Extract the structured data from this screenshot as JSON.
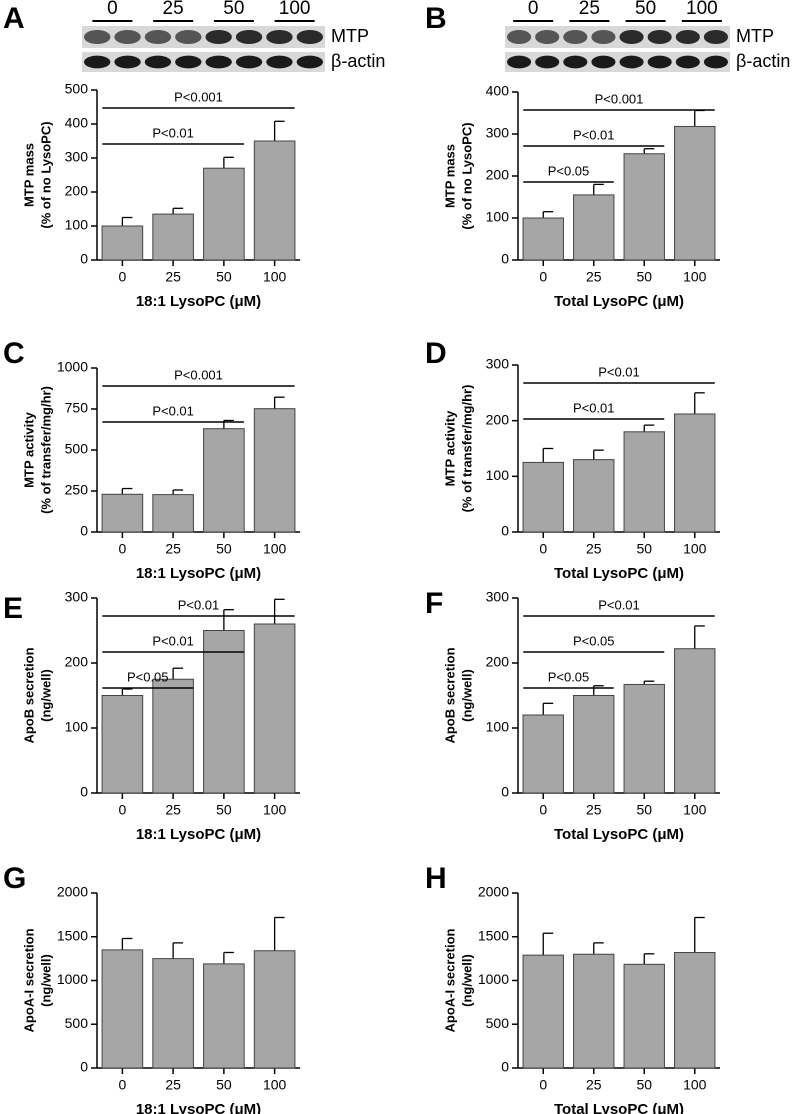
{
  "chart_data": [
    {
      "type": "bar",
      "panel": "A",
      "ylabel": [
        "MTP mass",
        "(% of no LysoPC)"
      ],
      "xlabel": "18:1 LysoPC (μM)",
      "categories": [
        "0",
        "25",
        "50",
        "100"
      ],
      "values": [
        100,
        135,
        270,
        350
      ],
      "errors": [
        25,
        17,
        32,
        58
      ],
      "color": "#a6a6a6",
      "ylim": [
        0,
        500
      ],
      "yticks": [
        0,
        100,
        200,
        300,
        400,
        500
      ],
      "brackets": [
        {
          "label": "P<0.01",
          "from": "0",
          "to": "50"
        },
        {
          "label": "P<0.001",
          "from": "0",
          "to": "100"
        }
      ],
      "blot": {
        "lanes": [
          "0",
          "25",
          "50",
          "100"
        ],
        "rows": [
          "MTP",
          "β-actin"
        ]
      }
    },
    {
      "type": "bar",
      "panel": "B",
      "ylabel": [
        "MTP mass",
        "(% of no LysoPC)"
      ],
      "xlabel": "Total LysoPC (μM)",
      "categories": [
        "0",
        "25",
        "50",
        "100"
      ],
      "values": [
        100,
        155,
        253,
        318
      ],
      "errors": [
        15,
        25,
        12,
        38
      ],
      "color": "#a6a6a6",
      "ylim": [
        0,
        400
      ],
      "yticks": [
        0,
        100,
        200,
        300,
        400
      ],
      "brackets": [
        {
          "label": "P<0.05",
          "from": "0",
          "to": "25"
        },
        {
          "label": "P<0.01",
          "from": "0",
          "to": "50"
        },
        {
          "label": "P<0.001",
          "from": "0",
          "to": "100"
        }
      ],
      "blot": {
        "lanes": [
          "0",
          "25",
          "50",
          "100"
        ],
        "rows": [
          "MTP",
          "β-actin"
        ]
      }
    },
    {
      "type": "bar",
      "panel": "C",
      "ylabel": [
        "MTP activity",
        "(% of transfer/mg/hr)"
      ],
      "xlabel": "18:1 LysoPC (μM)",
      "categories": [
        "0",
        "25",
        "50",
        "100"
      ],
      "values": [
        230,
        228,
        630,
        752
      ],
      "errors": [
        35,
        28,
        50,
        70
      ],
      "color": "#a6a6a6",
      "ylim": [
        0,
        1000
      ],
      "yticks": [
        0,
        250,
        500,
        750,
        1000
      ],
      "brackets": [
        {
          "label": "P<0.01",
          "from": "0",
          "to": "50"
        },
        {
          "label": "P<0.001",
          "from": "0",
          "to": "100"
        }
      ]
    },
    {
      "type": "bar",
      "panel": "D",
      "ylabel": [
        "MTP activity",
        "(% of transfer/mg/hr)"
      ],
      "xlabel": "Total LysoPC (μM)",
      "categories": [
        "0",
        "25",
        "50",
        "100"
      ],
      "values": [
        125,
        130,
        180,
        212
      ],
      "errors": [
        25,
        17,
        12,
        38
      ],
      "color": "#a6a6a6",
      "ylim": [
        0,
        300
      ],
      "yticks": [
        0,
        100,
        200,
        300
      ],
      "brackets": [
        {
          "label": "P<0.01",
          "from": "0",
          "to": "50"
        },
        {
          "label": "P<0.01",
          "from": "0",
          "to": "100"
        }
      ]
    },
    {
      "type": "bar",
      "panel": "E",
      "ylabel": [
        "ApoB secretion",
        "(ng/well)"
      ],
      "xlabel": "18:1 LysoPC (μM)",
      "categories": [
        "0",
        "25",
        "50",
        "100"
      ],
      "values": [
        150,
        175,
        250,
        260
      ],
      "errors": [
        10,
        17,
        32,
        38
      ],
      "color": "#a6a6a6",
      "ylim": [
        0,
        300
      ],
      "yticks": [
        0,
        100,
        200,
        300
      ],
      "brackets": [
        {
          "label": "P<0.05",
          "from": "0",
          "to": "25"
        },
        {
          "label": "P<0.01",
          "from": "0",
          "to": "50"
        },
        {
          "label": "P<0.01",
          "from": "0",
          "to": "100"
        }
      ]
    },
    {
      "type": "bar",
      "panel": "F",
      "ylabel": [
        "ApoB secretion",
        "(ng/well)"
      ],
      "xlabel": "Total LysoPC (μM)",
      "categories": [
        "0",
        "25",
        "50",
        "100"
      ],
      "values": [
        120,
        150,
        167,
        222
      ],
      "errors": [
        18,
        15,
        5,
        35
      ],
      "color": "#a6a6a6",
      "ylim": [
        0,
        300
      ],
      "yticks": [
        0,
        100,
        200,
        300
      ],
      "brackets": [
        {
          "label": "P<0.05",
          "from": "0",
          "to": "25"
        },
        {
          "label": "P<0.05",
          "from": "0",
          "to": "50"
        },
        {
          "label": "P<0.01",
          "from": "0",
          "to": "100"
        }
      ]
    },
    {
      "type": "bar",
      "panel": "G",
      "ylabel": [
        "ApoA-I secretion",
        "(ng/well)"
      ],
      "xlabel": "18:1 LysoPC (μM)",
      "categories": [
        "0",
        "25",
        "50",
        "100"
      ],
      "values": [
        1350,
        1250,
        1190,
        1340
      ],
      "errors": [
        130,
        180,
        130,
        380
      ],
      "color": "#a6a6a6",
      "ylim": [
        0,
        2000
      ],
      "yticks": [
        0,
        500,
        1000,
        1500,
        2000
      ]
    },
    {
      "type": "bar",
      "panel": "H",
      "ylabel": [
        "ApoA-I secretion",
        "(ng/well)"
      ],
      "xlabel": "Total LysoPC (μM)",
      "categories": [
        "0",
        "25",
        "50",
        "100"
      ],
      "values": [
        1290,
        1300,
        1185,
        1320
      ],
      "errors": [
        250,
        130,
        120,
        400
      ],
      "color": "#a6a6a6",
      "ylim": [
        0,
        2000
      ],
      "yticks": [
        0,
        500,
        1000,
        1500,
        2000
      ]
    }
  ]
}
